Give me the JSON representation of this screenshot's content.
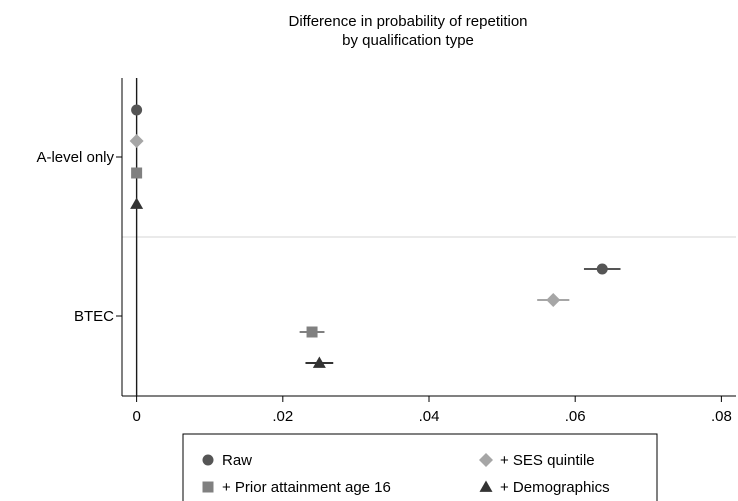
{
  "chart_data": {
    "type": "scatter",
    "title": "Difference in probability of repetition",
    "subtitle": "by qualification type",
    "xlabel": "",
    "ylabel": "",
    "xlim": [
      -0.002,
      0.082
    ],
    "x_ticks": [
      0,
      0.02,
      0.04,
      0.06,
      0.08
    ],
    "x_tick_labels": [
      "0",
      ".02",
      ".04",
      ".06",
      ".08"
    ],
    "reference_line_x": 0,
    "grid": false,
    "legend_position": "bottom",
    "categories": [
      "A-level only",
      "BTEC"
    ],
    "series": [
      {
        "name": "Raw",
        "marker": "circle",
        "color": "#555555",
        "values": [
          0,
          0.0637
        ],
        "ci_low": [
          null,
          0.0612
        ],
        "ci_high": [
          null,
          0.0662
        ]
      },
      {
        "name": "+ SES quintile",
        "marker": "diamond",
        "color": "#a6a6a6",
        "values": [
          0,
          0.057
        ],
        "ci_low": [
          null,
          0.0548
        ],
        "ci_high": [
          null,
          0.0592
        ]
      },
      {
        "name": "+ Prior attainment age 16",
        "marker": "square",
        "color": "#808080",
        "values": [
          0,
          0.024
        ],
        "ci_low": [
          null,
          0.0223
        ],
        "ci_high": [
          null,
          0.0257
        ]
      },
      {
        "name": "+ Demographics",
        "marker": "triangle",
        "color": "#333333",
        "values": [
          0,
          0.025
        ],
        "ci_low": [
          null,
          0.0231
        ],
        "ci_high": [
          null,
          0.0269
        ]
      }
    ]
  }
}
